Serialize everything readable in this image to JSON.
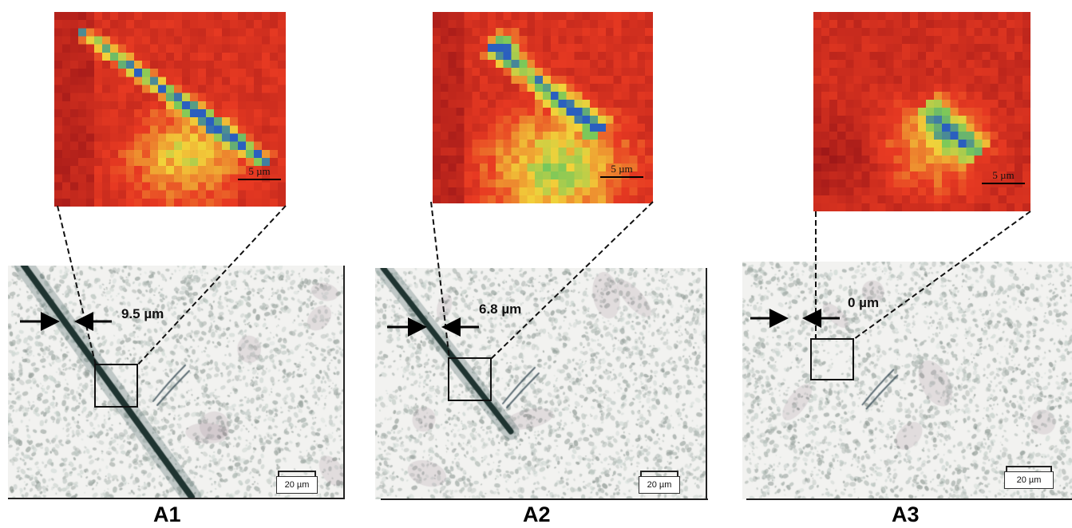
{
  "panels": [
    {
      "id": "A1",
      "label": "A1",
      "width_value": "9.5 µm",
      "heatmap_scale": "5 µm",
      "micro_scale": "20 µm"
    },
    {
      "id": "A2",
      "label": "A2",
      "width_value": "6.8 µm",
      "heatmap_scale": "5 µm",
      "micro_scale": "20 µm"
    },
    {
      "id": "A3",
      "label": "A3",
      "width_value": "0 µm",
      "heatmap_scale": "5 µm",
      "micro_scale": "20 µm"
    }
  ],
  "colors": {
    "heat_low": "#a01818",
    "heat_mid": "#e83a22",
    "heat_high": "#f2d23a",
    "heat_peak": "#2a5fbf",
    "micro_bg": "#f2f2f0",
    "crack": "#1d2e2a"
  }
}
